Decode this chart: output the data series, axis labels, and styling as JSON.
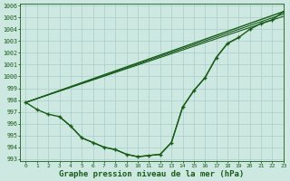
{
  "background_color": "#cce8e0",
  "grid_color": "#aacccc",
  "line_color": "#1a5c1a",
  "title": "Graphe pression niveau de la mer (hPa)",
  "xlabel_fontsize": 6.5,
  "xlim": [
    -0.5,
    23
  ],
  "ylim": [
    992.8,
    1006.2
  ],
  "yticks": [
    993,
    994,
    995,
    996,
    997,
    998,
    999,
    1000,
    1001,
    1002,
    1003,
    1004,
    1005,
    1006
  ],
  "xticks": [
    0,
    1,
    2,
    3,
    4,
    5,
    6,
    7,
    8,
    9,
    10,
    11,
    12,
    13,
    14,
    15,
    16,
    17,
    18,
    19,
    20,
    21,
    22,
    23
  ],
  "series": [
    {
      "x": [
        0,
        1,
        2,
        3,
        4,
        5,
        6,
        7,
        8,
        9,
        10,
        11,
        12,
        13,
        14,
        15,
        16,
        17,
        18,
        19,
        20,
        21,
        22,
        23
      ],
      "y": [
        997.8,
        997.2,
        996.8,
        996.6,
        995.8,
        994.8,
        994.4,
        994.0,
        993.8,
        993.4,
        993.2,
        993.3,
        993.4,
        994.4,
        997.4,
        998.8,
        999.9,
        1001.6,
        1002.8,
        1003.3,
        1004.0,
        1004.5,
        1004.8,
        1005.5
      ],
      "marker": "+",
      "markersize": 3.5,
      "markeredgewidth": 1.0,
      "linewidth": 1.0,
      "linestyle": "-"
    },
    {
      "comment": "straight line 1 from (0,997.8) to (23,1005.5)",
      "x": [
        0,
        23
      ],
      "y": [
        997.8,
        1005.5
      ],
      "marker": null,
      "markersize": 0,
      "linewidth": 1.0,
      "linestyle": "-"
    },
    {
      "x": [
        0,
        23
      ],
      "y": [
        997.8,
        1005.3
      ],
      "marker": null,
      "markersize": 0,
      "linewidth": 0.8,
      "linestyle": "-"
    },
    {
      "comment": "straight line 3 - from (0,997.8) to (23,1005.1)",
      "x": [
        0,
        23
      ],
      "y": [
        997.8,
        1005.1
      ],
      "marker": null,
      "markersize": 0,
      "linewidth": 0.8,
      "linestyle": "-"
    },
    {
      "x": [
        3,
        4,
        5,
        6,
        7,
        8,
        9,
        10,
        11,
        12,
        13,
        14,
        15,
        16,
        17,
        18,
        19
      ],
      "y": [
        996.6,
        995.8,
        994.8,
        994.4,
        994.0,
        993.8,
        993.4,
        993.2,
        993.3,
        993.4,
        994.4,
        997.4,
        998.8,
        999.9,
        1001.6,
        1002.8,
        1003.3
      ],
      "marker": null,
      "markersize": 0,
      "linewidth": 0.9,
      "linestyle": "-"
    }
  ]
}
